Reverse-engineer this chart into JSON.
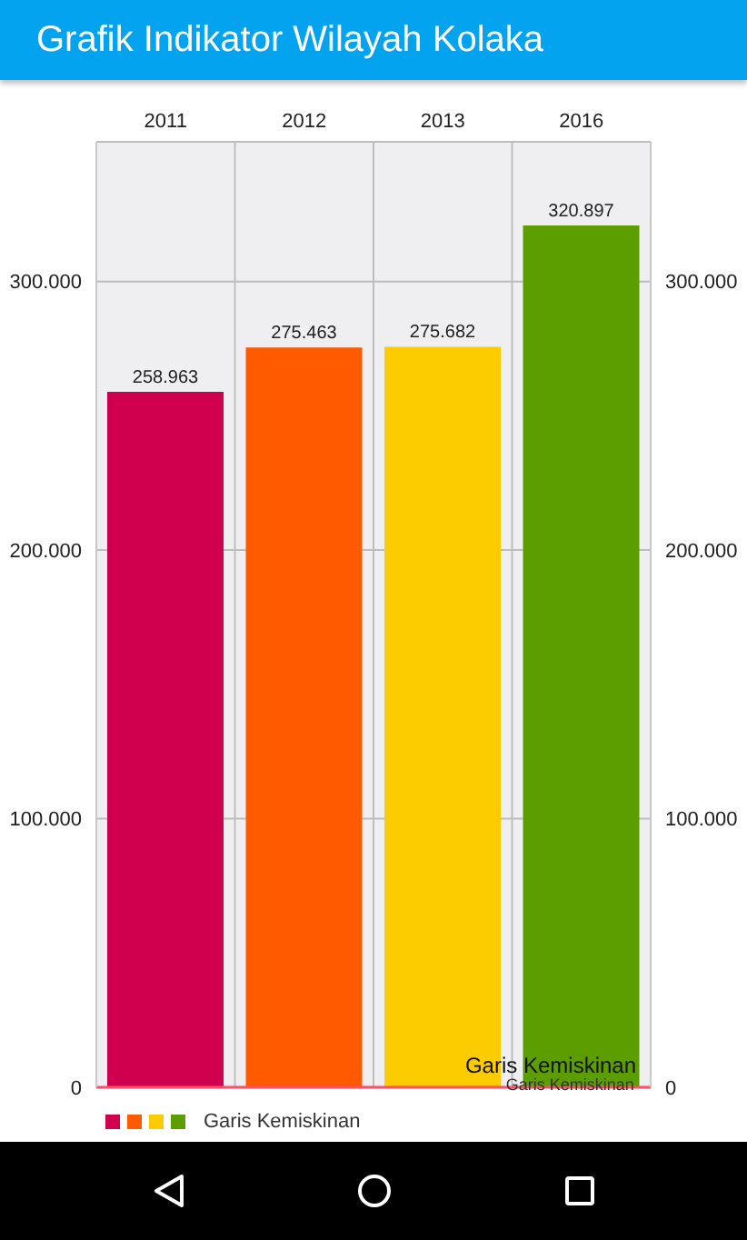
{
  "chart_data": {
    "type": "bar",
    "title": "Grafik Indikator Wilayah Kolaka",
    "categories": [
      "2011",
      "2012",
      "2013",
      "2016"
    ],
    "series": [
      {
        "name": "Garis Kemiskinan",
        "colors": [
          "#d1004f",
          "#ff5a00",
          "#fccc00",
          "#5c9e00"
        ],
        "values": [
          258963,
          275463,
          275682,
          320897
        ],
        "value_labels": [
          "258.963",
          "275.463",
          "275.682",
          "320.897"
        ]
      }
    ],
    "ylim": [
      0,
      352000
    ],
    "yticks": [
      {
        "value": 0,
        "label": "0"
      },
      {
        "value": 100000,
        "label": "100.000"
      },
      {
        "value": 200000,
        "label": "200.000"
      },
      {
        "value": 300000,
        "label": "300.000"
      }
    ],
    "y2lim": [
      0,
      352000
    ],
    "y2ticks": [
      {
        "value": 0,
        "label": "0"
      },
      {
        "value": 100000,
        "label": "100.000"
      },
      {
        "value": 200000,
        "label": "200.000"
      },
      {
        "value": 300000,
        "label": "300.000"
      }
    ],
    "ref_lines": [
      {
        "axis": "y",
        "value": 0,
        "label": "Garis Kemiskinan",
        "color": "#ff4d6a"
      }
    ],
    "annotations": [
      {
        "text": "Garis Kemiskinan",
        "x": "2016",
        "y": 0
      }
    ],
    "grid": true,
    "legend": "bottom left"
  }
}
